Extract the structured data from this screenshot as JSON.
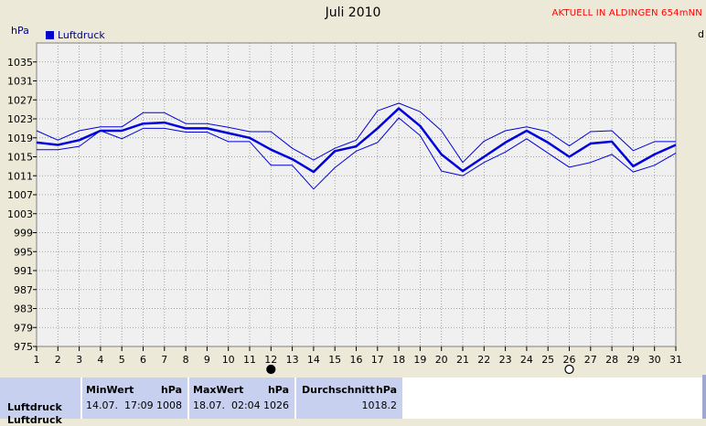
{
  "header": {
    "title": "Juli 2010",
    "station": "AKTUELL IN ALDINGEN 654mNN",
    "y_unit": "hPa",
    "right_fragment": "d"
  },
  "chart_data": {
    "type": "line",
    "title": "Juli 2010",
    "xlabel": "",
    "ylabel": "hPa",
    "x": [
      1,
      2,
      3,
      4,
      5,
      6,
      7,
      8,
      9,
      10,
      11,
      12,
      13,
      14,
      15,
      16,
      17,
      18,
      19,
      20,
      21,
      22,
      23,
      24,
      25,
      26,
      27,
      28,
      29,
      30,
      31
    ],
    "xlim": [
      1,
      31
    ],
    "ylim": [
      975,
      1039
    ],
    "yticks": [
      975,
      979,
      983,
      987,
      991,
      995,
      999,
      1003,
      1007,
      1011,
      1015,
      1019,
      1023,
      1027,
      1031,
      1035
    ],
    "grid": true,
    "legend": "top-left",
    "series": [
      {
        "name": "Luftdruck",
        "role": "mean",
        "color": "#0000dd",
        "values": [
          1018,
          1017.5,
          1018.5,
          1020.5,
          1020.5,
          1022,
          1022.2,
          1021,
          1021,
          1020,
          1019,
          1016.5,
          1014.5,
          1011.8,
          1016.2,
          1017.2,
          1021,
          1025.2,
          1021.5,
          1015.5,
          1012,
          1015,
          1018,
          1020.5,
          1018,
          1015,
          1017.8,
          1018.2,
          1013,
          1015.5,
          1017.5
        ]
      },
      {
        "role": "max",
        "color": "#0000dd",
        "values": [
          1020.5,
          1018.5,
          1020.5,
          1021.3,
          1021.3,
          1024.3,
          1024.3,
          1022,
          1022,
          1021.2,
          1020.3,
          1020.3,
          1016.8,
          1014.3,
          1016.8,
          1018.5,
          1024.7,
          1026.3,
          1024.5,
          1020.5,
          1013.8,
          1018.3,
          1020.5,
          1021.3,
          1020.3,
          1017.3,
          1020.3,
          1020.5,
          1016.3,
          1018.2,
          1018.2
        ]
      },
      {
        "role": "min",
        "color": "#0000dd",
        "values": [
          1016.5,
          1016.5,
          1017.2,
          1020.5,
          1018.8,
          1021,
          1021,
          1020.2,
          1020.2,
          1018.2,
          1018.2,
          1013.2,
          1013.2,
          1008.2,
          1012.7,
          1016.2,
          1018,
          1023.2,
          1019.5,
          1012,
          1011,
          1013.8,
          1016,
          1018.8,
          1015.8,
          1012.8,
          1013.8,
          1015.5,
          1011.8,
          1013.2,
          1015.8
        ]
      }
    ],
    "markers": [
      {
        "day": 12,
        "symbol": "filled-circle"
      },
      {
        "day": 26,
        "symbol": "open-circle"
      }
    ],
    "colors": {
      "plot_bg": "#f0f0f0",
      "page_bg": "#ece9d8",
      "grid": "#8c8c8c",
      "line": "#0000dd"
    }
  },
  "stats": {
    "row_label": "Luftdruck",
    "row_label_2": "Luftdruck",
    "min": {
      "header": "MinWert",
      "unit": "hPa",
      "datetime": "14.07.  17:09",
      "value": "1008"
    },
    "max": {
      "header": "MaxWert",
      "unit": "hPa",
      "datetime": "18.07.  02:04",
      "value": "1026"
    },
    "avg": {
      "header": "Durchschnitt",
      "unit": "hPa",
      "value": "1018.2"
    }
  }
}
